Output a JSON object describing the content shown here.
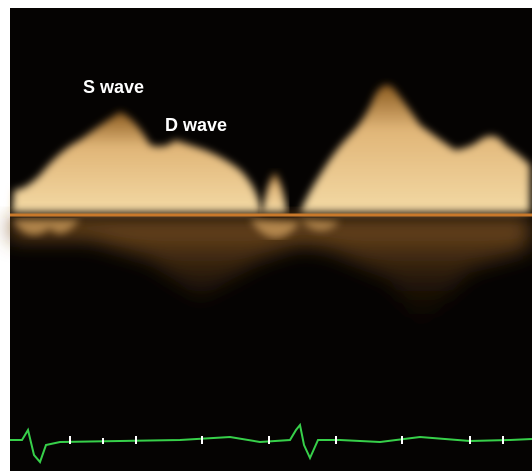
{
  "labels": {
    "s_wave": "S wave",
    "d_wave": "D wave"
  }
}
